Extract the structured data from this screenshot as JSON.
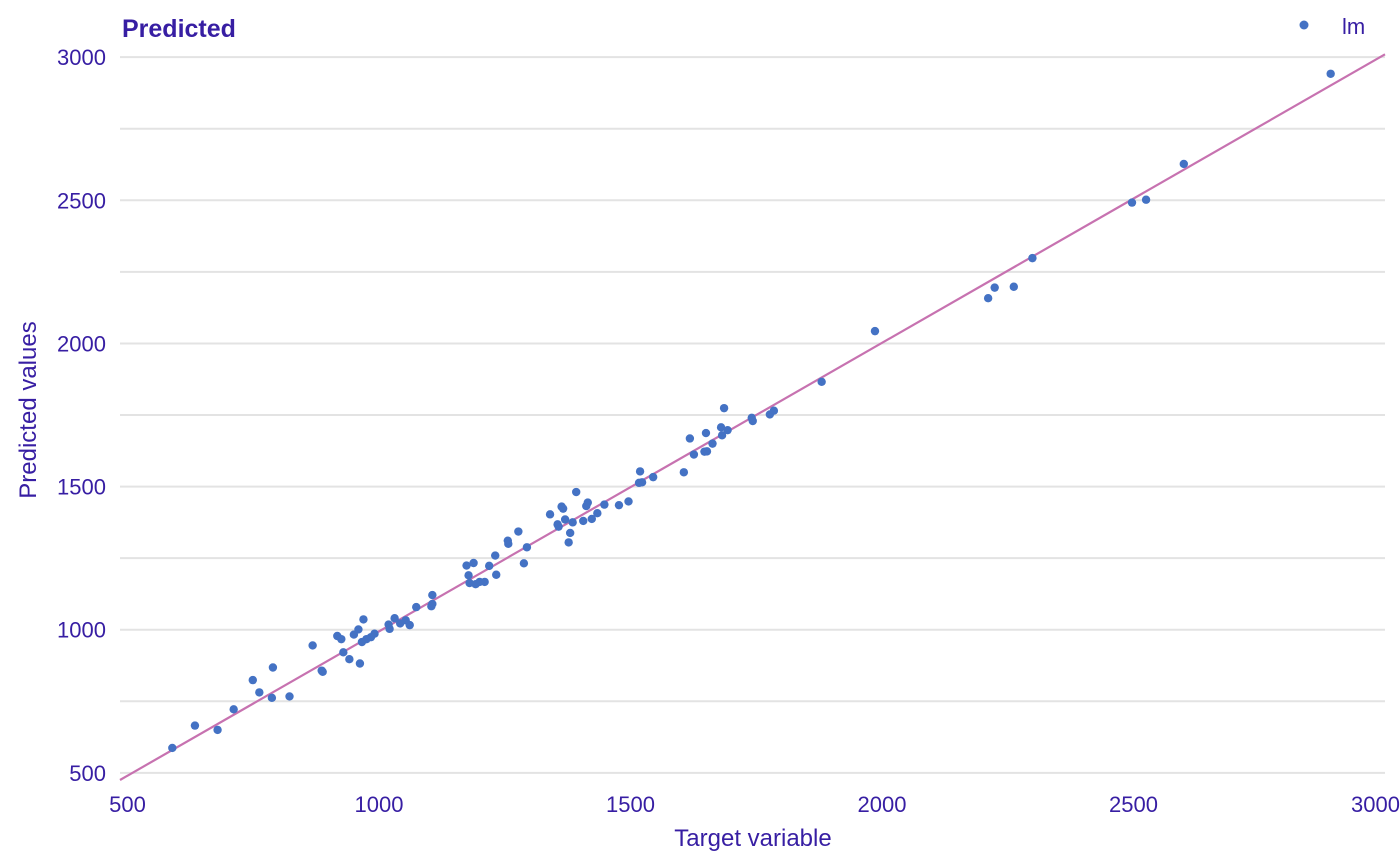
{
  "chart_data": {
    "type": "scatter",
    "title": "Predicted",
    "xlabel": "Target variable",
    "ylabel": "Predicted values",
    "xlim": [
      485,
      3000
    ],
    "ylim": [
      475,
      3060
    ],
    "x_ticks": [
      500,
      1000,
      1500,
      2000,
      2500,
      3000
    ],
    "y_ticks": [
      500,
      1000,
      1500,
      2000,
      2500,
      3000
    ],
    "y_minor_gridlines": [
      750,
      1250,
      1750,
      2250,
      2750
    ],
    "grid": true,
    "legend_position": "top-right",
    "colors": {
      "points": "#4472c4",
      "line": "#c772b0",
      "text": "#371ea3",
      "grid": "#e3e3e3"
    },
    "reference_line": {
      "x": [
        485,
        3000
      ],
      "y": [
        475,
        3010
      ]
    },
    "series": [
      {
        "name": "lm",
        "points": [
          [
            589,
            587
          ],
          [
            634,
            665
          ],
          [
            679,
            650
          ],
          [
            711,
            722
          ],
          [
            749,
            824
          ],
          [
            762,
            781
          ],
          [
            787,
            762
          ],
          [
            789,
            868
          ],
          [
            822,
            767
          ],
          [
            868,
            945
          ],
          [
            886,
            857
          ],
          [
            888,
            853
          ],
          [
            917,
            978
          ],
          [
            925,
            967
          ],
          [
            929,
            921
          ],
          [
            941,
            897
          ],
          [
            950,
            983
          ],
          [
            959,
            1001
          ],
          [
            962,
            882
          ],
          [
            966,
            957
          ],
          [
            969,
            1036
          ],
          [
            975,
            967
          ],
          [
            984,
            974
          ],
          [
            991,
            986
          ],
          [
            1019,
            1018
          ],
          [
            1021,
            1003
          ],
          [
            1031,
            1040
          ],
          [
            1042,
            1022
          ],
          [
            1053,
            1033
          ],
          [
            1061,
            1016
          ],
          [
            1074,
            1079
          ],
          [
            1104,
            1082
          ],
          [
            1106,
            1090
          ],
          [
            1106,
            1121
          ],
          [
            1174,
            1224
          ],
          [
            1178,
            1190
          ],
          [
            1180,
            1163
          ],
          [
            1188,
            1233
          ],
          [
            1192,
            1159
          ],
          [
            1200,
            1167
          ],
          [
            1210,
            1167
          ],
          [
            1219,
            1223
          ],
          [
            1231,
            1259
          ],
          [
            1233,
            1192
          ],
          [
            1256,
            1311
          ],
          [
            1257,
            1300
          ],
          [
            1277,
            1343
          ],
          [
            1288,
            1232
          ],
          [
            1294,
            1288
          ],
          [
            1340,
            1403
          ],
          [
            1355,
            1368
          ],
          [
            1357,
            1360
          ],
          [
            1363,
            1430
          ],
          [
            1366,
            1423
          ],
          [
            1370,
            1385
          ],
          [
            1377,
            1305
          ],
          [
            1380,
            1338
          ],
          [
            1385,
            1375
          ],
          [
            1392,
            1481
          ],
          [
            1406,
            1380
          ],
          [
            1412,
            1432
          ],
          [
            1415,
            1444
          ],
          [
            1423,
            1387
          ],
          [
            1434,
            1407
          ],
          [
            1448,
            1437
          ],
          [
            1477,
            1435
          ],
          [
            1496,
            1448
          ],
          [
            1517,
            1513
          ],
          [
            1519,
            1553
          ],
          [
            1523,
            1515
          ],
          [
            1545,
            1533
          ],
          [
            1606,
            1550
          ],
          [
            1618,
            1668
          ],
          [
            1626,
            1612
          ],
          [
            1647,
            1622
          ],
          [
            1650,
            1687
          ],
          [
            1652,
            1623
          ],
          [
            1663,
            1650
          ],
          [
            1680,
            1707
          ],
          [
            1682,
            1679
          ],
          [
            1686,
            1774
          ],
          [
            1693,
            1697
          ],
          [
            1741,
            1740
          ],
          [
            1743,
            1729
          ],
          [
            1777,
            1752
          ],
          [
            1785,
            1765
          ],
          [
            1880,
            1866
          ],
          [
            1986,
            2043
          ],
          [
            2211,
            2158
          ],
          [
            2224,
            2195
          ],
          [
            2262,
            2198
          ],
          [
            2299,
            2298
          ],
          [
            2497,
            2492
          ],
          [
            2525,
            2502
          ],
          [
            2600,
            2627
          ],
          [
            2892,
            2942
          ]
        ]
      }
    ]
  }
}
